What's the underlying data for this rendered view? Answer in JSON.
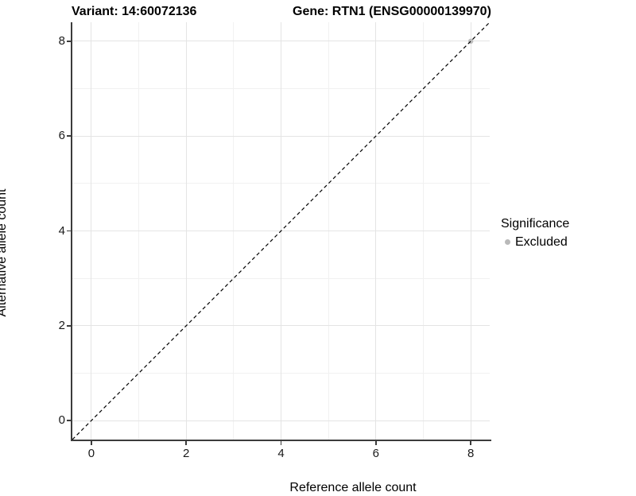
{
  "title": {
    "left": "Variant: 14:60072136",
    "right": "Gene: RTN1 (ENSG00000139970)"
  },
  "chart_data": {
    "type": "scatter",
    "title": "Variant: 14:60072136   Gene: RTN1 (ENSG00000139970)",
    "xlabel": "Reference allele count",
    "ylabel": "Alternative allele count",
    "xlim": [
      -0.4,
      8.4
    ],
    "ylim": [
      -0.4,
      8.4
    ],
    "x_major_ticks": [
      0,
      2,
      4,
      6,
      8
    ],
    "y_major_ticks": [
      0,
      2,
      4,
      6,
      8
    ],
    "x_minor_ticks": [
      1,
      3,
      5,
      7
    ],
    "y_minor_ticks": [
      1,
      3,
      5,
      7
    ],
    "grid": true,
    "points": [
      {
        "x": 8,
        "y": 8,
        "series": "Excluded"
      }
    ],
    "reference_line": {
      "slope": 1,
      "intercept": 0,
      "style": "dashed",
      "dash": [
        4.5,
        3.5
      ],
      "width": 1.2
    },
    "legend": {
      "title": "Significance",
      "position": "right",
      "items": [
        {
          "label": "Excluded",
          "color": "#b9b9b9"
        }
      ]
    },
    "colors": {
      "point": "#bdbdbd",
      "grid_major": "#e4e4e4",
      "grid_minor": "#f1f1f1",
      "axis": "#3c3c3c",
      "reference_line": "#000000",
      "background": "#ffffff",
      "text": "#000000"
    },
    "point_radius": 3.2
  }
}
